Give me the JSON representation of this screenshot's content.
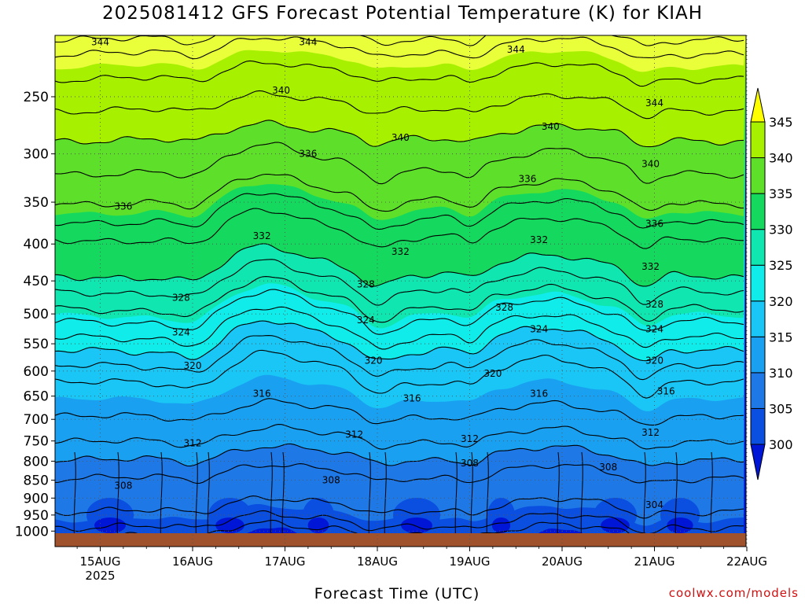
{
  "chart_data": {
    "type": "heatmap",
    "title": "2025081412 GFS Forecast Potential Temperature (K) for KIAH",
    "xlabel": "Forecast Time (UTC)",
    "ylabel": "",
    "credit": "coolwx.com/models",
    "x_ticks": [
      "15AUG",
      "16AUG",
      "17AUG",
      "18AUG",
      "19AUG",
      "20AUG",
      "21AUG",
      "22AUG"
    ],
    "x_year": "2025",
    "y_ticks": [
      "250",
      "300",
      "350",
      "400",
      "450",
      "500",
      "550",
      "600",
      "650",
      "700",
      "750",
      "800",
      "850",
      "900",
      "950",
      "1000"
    ],
    "y_axis": "pressure (hPa), log scale, reversed",
    "ylim": [
      200,
      1020
    ],
    "grid": true,
    "colorbar": {
      "labels": [
        "300",
        "305",
        "310",
        "315",
        "320",
        "325",
        "330",
        "335",
        "340",
        "345"
      ],
      "colors": [
        "#0016d6",
        "#0a4fe0",
        "#1e78e6",
        "#1aa0f0",
        "#19c6f5",
        "#10ecea",
        "#10e6b0",
        "#14d95e",
        "#5ee02a",
        "#a6f000",
        "#e8ff3a",
        "#ffff00"
      ]
    },
    "contour_labels": [
      {
        "label": "344",
        "time": "15AUG 00Z",
        "pressure": 210
      },
      {
        "label": "344",
        "time": "17AUG 06Z",
        "pressure": 210
      },
      {
        "label": "344",
        "time": "19AUG 12Z",
        "pressure": 215
      },
      {
        "label": "344",
        "time": "21AUG 00Z",
        "pressure": 255
      },
      {
        "label": "340",
        "time": "16AUG 23Z",
        "pressure": 245
      },
      {
        "label": "340",
        "time": "18AUG 06Z",
        "pressure": 285
      },
      {
        "label": "340",
        "time": "19AUG 21Z",
        "pressure": 275
      },
      {
        "label": "340",
        "time": "20AUG 23Z",
        "pressure": 310
      },
      {
        "label": "336",
        "time": "15AUG 06Z",
        "pressure": 355
      },
      {
        "label": "336",
        "time": "17AUG 06Z",
        "pressure": 300
      },
      {
        "label": "336",
        "time": "19AUG 15Z",
        "pressure": 325
      },
      {
        "label": "336",
        "time": "21AUG 00Z",
        "pressure": 375
      },
      {
        "label": "332",
        "time": "16AUG 18Z",
        "pressure": 390
      },
      {
        "label": "332",
        "time": "18AUG 06Z",
        "pressure": 410
      },
      {
        "label": "332",
        "time": "19AUG 18Z",
        "pressure": 395
      },
      {
        "label": "332",
        "time": "20AUG 23Z",
        "pressure": 430
      },
      {
        "label": "328",
        "time": "15AUG 21Z",
        "pressure": 475
      },
      {
        "label": "328",
        "time": "17AUG 21Z",
        "pressure": 455
      },
      {
        "label": "328",
        "time": "19AUG 09Z",
        "pressure": 490
      },
      {
        "label": "328",
        "time": "21AUG 00Z",
        "pressure": 485
      },
      {
        "label": "324",
        "time": "15AUG 21Z",
        "pressure": 530
      },
      {
        "label": "324",
        "time": "17AUG 21Z",
        "pressure": 510
      },
      {
        "label": "324",
        "time": "19AUG 18Z",
        "pressure": 525
      },
      {
        "label": "324",
        "time": "21AUG 00Z",
        "pressure": 525
      },
      {
        "label": "320",
        "time": "16AUG 00Z",
        "pressure": 590
      },
      {
        "label": "320",
        "time": "17AUG 23Z",
        "pressure": 580
      },
      {
        "label": "320",
        "time": "19AUG 06Z",
        "pressure": 605
      },
      {
        "label": "320",
        "time": "21AUG 00Z",
        "pressure": 580
      },
      {
        "label": "316",
        "time": "16AUG 18Z",
        "pressure": 645
      },
      {
        "label": "316",
        "time": "18AUG 09Z",
        "pressure": 655
      },
      {
        "label": "316",
        "time": "19AUG 18Z",
        "pressure": 645
      },
      {
        "label": "316",
        "time": "21AUG 03Z",
        "pressure": 640
      },
      {
        "label": "312",
        "time": "16AUG 00Z",
        "pressure": 755
      },
      {
        "label": "312",
        "time": "17AUG 18Z",
        "pressure": 735
      },
      {
        "label": "312",
        "time": "19AUG 00Z",
        "pressure": 745
      },
      {
        "label": "312",
        "time": "20AUG 23Z",
        "pressure": 730
      },
      {
        "label": "308",
        "time": "15AUG 06Z",
        "pressure": 865
      },
      {
        "label": "308",
        "time": "17AUG 12Z",
        "pressure": 850
      },
      {
        "label": "308",
        "time": "19AUG 00Z",
        "pressure": 805
      },
      {
        "label": "308",
        "time": "20AUG 12Z",
        "pressure": 815
      },
      {
        "label": "304",
        "time": "21AUG 00Z",
        "pressure": 920
      }
    ]
  }
}
